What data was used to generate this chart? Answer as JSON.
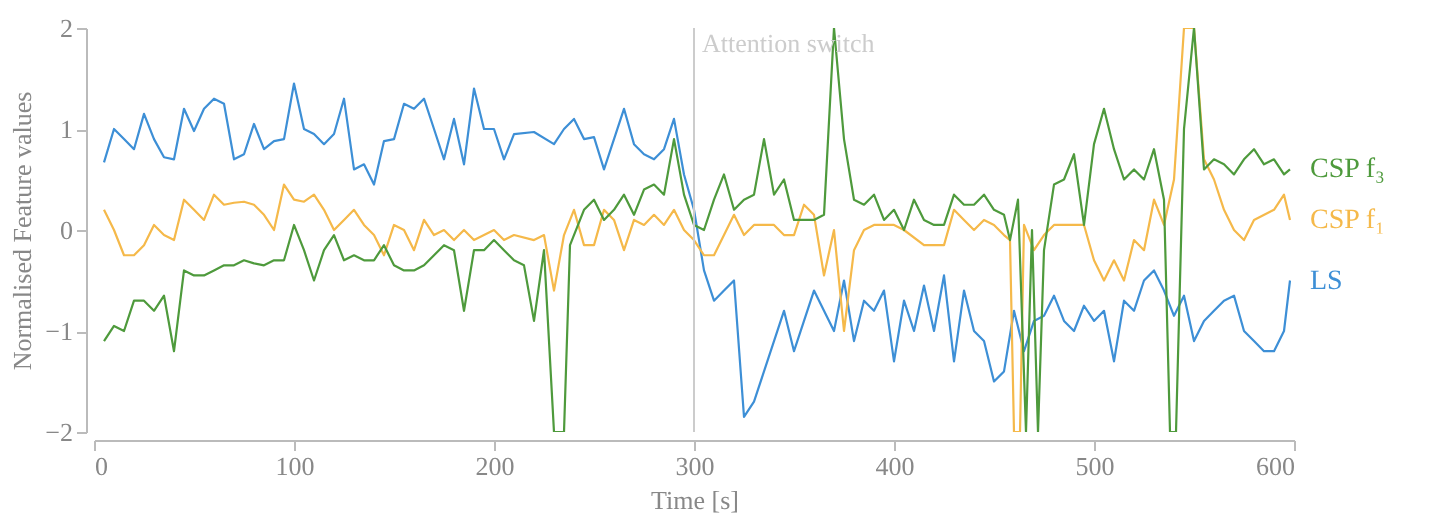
{
  "chart_data": {
    "type": "line",
    "xlabel": "Time [s]",
    "ylabel": "Normalised Feature values",
    "xlim": [
      0,
      600
    ],
    "ylim": [
      -2,
      2
    ],
    "xticks": [
      0,
      100,
      200,
      300,
      400,
      500,
      600
    ],
    "yticks": [
      {
        "value": -2,
        "label": "−2"
      },
      {
        "value": -1,
        "label": "−1"
      },
      0,
      1,
      2
    ],
    "grid": false,
    "legend": false,
    "line_style": "solid",
    "marker": "none",
    "ref_lines": [
      {
        "axis": "x",
        "value": 300,
        "label": "Attention switch",
        "color": "#cccccc"
      }
    ],
    "series": [
      {
        "name": "LS",
        "color": "#3d8fd6",
        "x": [
          5,
          10,
          15,
          20,
          25,
          30,
          35,
          40,
          45,
          50,
          55,
          60,
          65,
          70,
          75,
          80,
          85,
          90,
          95,
          100,
          105,
          110,
          115,
          120,
          125,
          130,
          135,
          140,
          145,
          150,
          155,
          160,
          165,
          170,
          175,
          180,
          185,
          190,
          195,
          200,
          205,
          210,
          220,
          230,
          235,
          240,
          245,
          250,
          255,
          265,
          270,
          275,
          280,
          285,
          290,
          295,
          300,
          305,
          310,
          315,
          320,
          325,
          330,
          335,
          340,
          345,
          350,
          355,
          360,
          365,
          370,
          375,
          380,
          385,
          390,
          395,
          400,
          405,
          410,
          415,
          420,
          425,
          430,
          435,
          440,
          445,
          450,
          455,
          460,
          465,
          470,
          475,
          480,
          485,
          490,
          495,
          500,
          505,
          510,
          515,
          520,
          525,
          530,
          535,
          540,
          545,
          550,
          555,
          560,
          565,
          570,
          575,
          580,
          585,
          590,
          595,
          598
        ],
        "values": [
          0.67,
          1.0,
          0.9,
          0.8,
          1.15,
          0.9,
          0.72,
          0.7,
          1.2,
          0.98,
          1.2,
          1.3,
          1.25,
          0.7,
          0.75,
          1.05,
          0.8,
          0.88,
          0.9,
          1.45,
          1.0,
          0.95,
          0.85,
          0.95,
          1.3,
          0.6,
          0.65,
          0.45,
          0.88,
          0.9,
          1.25,
          1.2,
          1.3,
          1.0,
          0.7,
          1.1,
          0.65,
          1.4,
          1.0,
          1.0,
          0.7,
          0.95,
          0.97,
          0.85,
          1.0,
          1.1,
          0.9,
          0.92,
          0.6,
          1.2,
          0.85,
          0.75,
          0.7,
          0.8,
          1.1,
          0.55,
          0.2,
          -0.4,
          -0.7,
          -0.6,
          -0.5,
          -1.85,
          -1.7,
          -1.4,
          -1.1,
          -0.8,
          -1.2,
          -0.9,
          -0.6,
          -0.8,
          -1.0,
          -0.5,
          -1.1,
          -0.7,
          -0.8,
          -0.6,
          -1.3,
          -0.7,
          -1.0,
          -0.55,
          -1.0,
          -0.45,
          -1.3,
          -0.6,
          -1.0,
          -1.1,
          -1.5,
          -1.4,
          -0.8,
          -1.2,
          -0.9,
          -0.85,
          -0.65,
          -0.9,
          -1.0,
          -0.75,
          -0.9,
          -0.8,
          -1.3,
          -0.7,
          -0.8,
          -0.5,
          -0.4,
          -0.6,
          -0.85,
          -0.65,
          -1.1,
          -0.9,
          -0.8,
          -0.7,
          -0.65,
          -1.0,
          -1.1,
          -1.2,
          -1.2,
          -1.0,
          -0.5
        ]
      },
      {
        "name": "CSP f₁",
        "color": "#f5b94a",
        "x": [
          5,
          10,
          15,
          20,
          25,
          30,
          35,
          40,
          45,
          50,
          55,
          60,
          65,
          70,
          75,
          80,
          85,
          90,
          95,
          100,
          105,
          110,
          115,
          120,
          125,
          130,
          135,
          140,
          145,
          150,
          155,
          160,
          165,
          170,
          175,
          180,
          185,
          190,
          195,
          200,
          205,
          210,
          220,
          225,
          230,
          235,
          240,
          245,
          250,
          255,
          260,
          265,
          270,
          275,
          280,
          285,
          290,
          295,
          300,
          305,
          310,
          320,
          325,
          330,
          335,
          340,
          345,
          350,
          355,
          360,
          365,
          370,
          375,
          380,
          385,
          390,
          400,
          405,
          415,
          425,
          430,
          435,
          440,
          445,
          450,
          455,
          458,
          460,
          463,
          465,
          470,
          475,
          480,
          490,
          495,
          500,
          505,
          510,
          515,
          520,
          525,
          530,
          535,
          540,
          545,
          550,
          555,
          560,
          565,
          570,
          575,
          580,
          590,
          595,
          598
        ],
        "values": [
          0.2,
          0.0,
          -0.25,
          -0.25,
          -0.15,
          0.05,
          -0.05,
          -0.1,
          0.3,
          0.2,
          0.1,
          0.35,
          0.25,
          0.27,
          0.28,
          0.25,
          0.15,
          0.0,
          0.45,
          0.3,
          0.28,
          0.35,
          0.2,
          0.0,
          0.1,
          0.2,
          0.05,
          -0.05,
          -0.25,
          0.05,
          0.0,
          -0.2,
          0.1,
          -0.05,
          0.0,
          -0.1,
          0.0,
          -0.1,
          -0.05,
          0.0,
          -0.1,
          -0.05,
          -0.1,
          -0.05,
          -0.6,
          -0.05,
          0.2,
          -0.15,
          -0.15,
          0.2,
          0.1,
          -0.2,
          0.1,
          0.05,
          0.15,
          0.05,
          0.2,
          0.0,
          -0.1,
          -0.25,
          -0.25,
          0.15,
          -0.05,
          0.05,
          0.05,
          0.05,
          -0.05,
          -0.05,
          0.25,
          0.15,
          -0.45,
          0.0,
          -1.0,
          -0.2,
          0.0,
          0.05,
          0.05,
          0.0,
          -0.15,
          -0.15,
          0.2,
          0.1,
          0.0,
          0.1,
          0.05,
          -0.05,
          -0.1,
          -2,
          -2,
          0.05,
          -0.2,
          -0.05,
          0.05,
          0.05,
          0.05,
          -0.3,
          -0.5,
          -0.3,
          -0.5,
          -0.1,
          -0.2,
          0.3,
          0.05,
          0.5,
          2,
          2,
          0.7,
          0.5,
          0.2,
          0.0,
          -0.1,
          0.1,
          0.2,
          0.35,
          0.1
        ]
      },
      {
        "name": "CSP f₃",
        "color": "#4e9a3c",
        "x": [
          5,
          10,
          15,
          20,
          25,
          30,
          35,
          40,
          45,
          50,
          55,
          60,
          65,
          70,
          75,
          80,
          85,
          90,
          95,
          100,
          105,
          110,
          115,
          120,
          125,
          130,
          135,
          140,
          145,
          150,
          155,
          160,
          165,
          170,
          175,
          180,
          185,
          190,
          195,
          200,
          205,
          210,
          215,
          220,
          225,
          230,
          235,
          238,
          245,
          250,
          255,
          260,
          265,
          270,
          275,
          280,
          285,
          290,
          295,
          300,
          305,
          310,
          315,
          320,
          325,
          330,
          335,
          340,
          345,
          350,
          355,
          360,
          365,
          370,
          375,
          380,
          385,
          390,
          395,
          400,
          405,
          410,
          415,
          420,
          425,
          430,
          435,
          440,
          445,
          450,
          455,
          458,
          462,
          466,
          469,
          472,
          475,
          480,
          485,
          490,
          495,
          500,
          505,
          510,
          515,
          520,
          525,
          530,
          535,
          538,
          541,
          545,
          550,
          555,
          560,
          565,
          570,
          575,
          580,
          585,
          590,
          595,
          598
        ],
        "values": [
          -1.1,
          -0.95,
          -1.0,
          -0.7,
          -0.7,
          -0.8,
          -0.65,
          -1.2,
          -0.4,
          -0.45,
          -0.45,
          -0.4,
          -0.35,
          -0.35,
          -0.3,
          -0.33,
          -0.35,
          -0.3,
          -0.3,
          0.05,
          -0.2,
          -0.5,
          -0.2,
          -0.05,
          -0.3,
          -0.25,
          -0.3,
          -0.3,
          -0.15,
          -0.35,
          -0.4,
          -0.4,
          -0.35,
          -0.25,
          -0.15,
          -0.2,
          -0.8,
          -0.2,
          -0.2,
          -0.1,
          -0.2,
          -0.3,
          -0.35,
          -0.9,
          -0.2,
          -2,
          -2,
          -0.15,
          0.2,
          0.3,
          0.1,
          0.2,
          0.35,
          0.15,
          0.4,
          0.45,
          0.35,
          0.9,
          0.35,
          0.05,
          0.0,
          0.3,
          0.55,
          0.2,
          0.3,
          0.35,
          0.9,
          0.35,
          0.5,
          0.1,
          0.1,
          0.1,
          0.15,
          2,
          0.9,
          0.3,
          0.25,
          0.35,
          0.1,
          0.2,
          0.0,
          0.3,
          0.1,
          0.05,
          0.05,
          0.35,
          0.25,
          0.25,
          0.35,
          0.2,
          0.15,
          -0.1,
          0.3,
          -2,
          0.0,
          -2,
          -0.2,
          0.45,
          0.5,
          0.75,
          0.05,
          0.85,
          1.2,
          0.8,
          0.5,
          0.6,
          0.5,
          0.8,
          0.3,
          -2,
          -2,
          1.0,
          2,
          0.6,
          0.7,
          0.65,
          0.55,
          0.7,
          0.8,
          0.65,
          0.7,
          0.55,
          0.6
        ]
      }
    ]
  }
}
